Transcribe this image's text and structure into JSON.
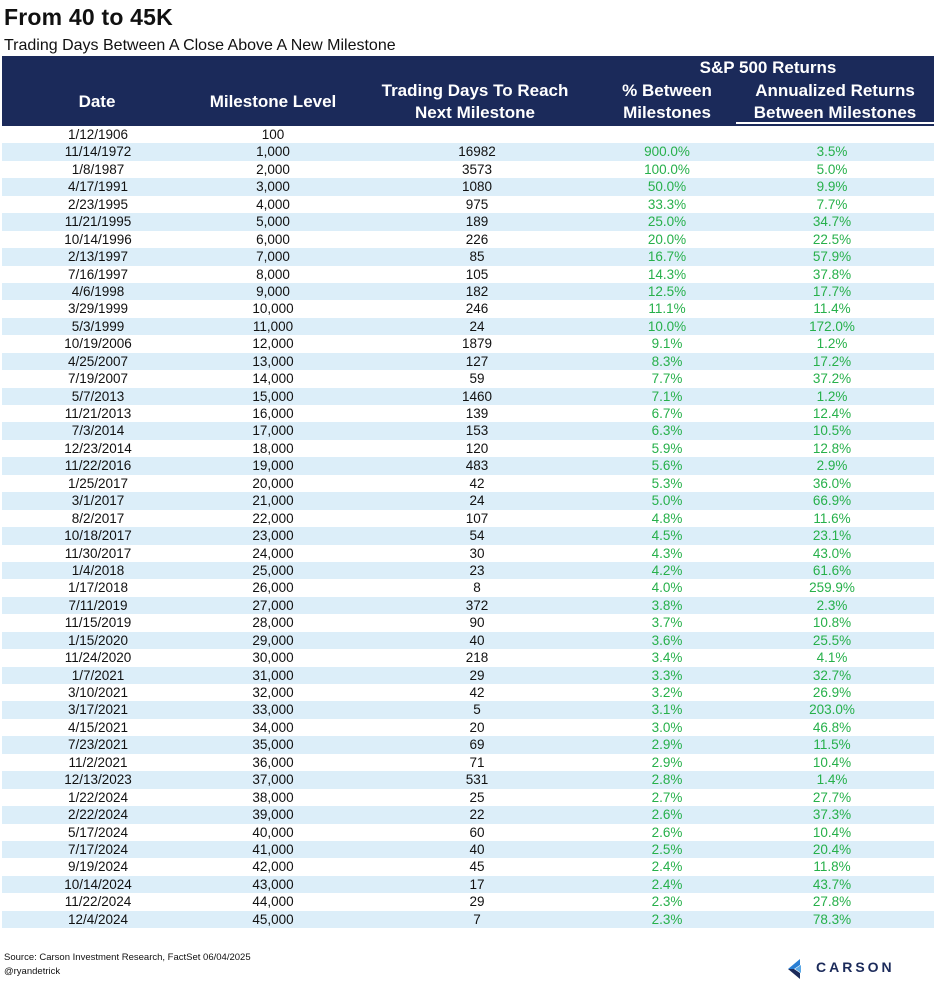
{
  "title": "From 40 to 45K",
  "subtitle": "Trading Days Between A Close Above A New Milestone",
  "header": {
    "date": "Date",
    "level": "Milestone Level",
    "days_line1": "Trading Days To Reach",
    "days_line2": "Next Milestone",
    "group": "S&P 500 Returns",
    "between_line1": "% Between",
    "between_line2": "Milestones",
    "annual_line1": "Annualized Returns",
    "annual_line2": "Between Milestones"
  },
  "rows": [
    {
      "date": "1/12/1906",
      "level": "100",
      "days": "",
      "between": "",
      "annual": ""
    },
    {
      "date": "11/14/1972",
      "level": "1,000",
      "days": "16982",
      "between": "900.0%",
      "annual": "3.5%"
    },
    {
      "date": "1/8/1987",
      "level": "2,000",
      "days": "3573",
      "between": "100.0%",
      "annual": "5.0%"
    },
    {
      "date": "4/17/1991",
      "level": "3,000",
      "days": "1080",
      "between": "50.0%",
      "annual": "9.9%"
    },
    {
      "date": "2/23/1995",
      "level": "4,000",
      "days": "975",
      "between": "33.3%",
      "annual": "7.7%"
    },
    {
      "date": "11/21/1995",
      "level": "5,000",
      "days": "189",
      "between": "25.0%",
      "annual": "34.7%"
    },
    {
      "date": "10/14/1996",
      "level": "6,000",
      "days": "226",
      "between": "20.0%",
      "annual": "22.5%"
    },
    {
      "date": "2/13/1997",
      "level": "7,000",
      "days": "85",
      "between": "16.7%",
      "annual": "57.9%"
    },
    {
      "date": "7/16/1997",
      "level": "8,000",
      "days": "105",
      "between": "14.3%",
      "annual": "37.8%"
    },
    {
      "date": "4/6/1998",
      "level": "9,000",
      "days": "182",
      "between": "12.5%",
      "annual": "17.7%"
    },
    {
      "date": "3/29/1999",
      "level": "10,000",
      "days": "246",
      "between": "11.1%",
      "annual": "11.4%"
    },
    {
      "date": "5/3/1999",
      "level": "11,000",
      "days": "24",
      "between": "10.0%",
      "annual": "172.0%"
    },
    {
      "date": "10/19/2006",
      "level": "12,000",
      "days": "1879",
      "between": "9.1%",
      "annual": "1.2%"
    },
    {
      "date": "4/25/2007",
      "level": "13,000",
      "days": "127",
      "between": "8.3%",
      "annual": "17.2%"
    },
    {
      "date": "7/19/2007",
      "level": "14,000",
      "days": "59",
      "between": "7.7%",
      "annual": "37.2%"
    },
    {
      "date": "5/7/2013",
      "level": "15,000",
      "days": "1460",
      "between": "7.1%",
      "annual": "1.2%"
    },
    {
      "date": "11/21/2013",
      "level": "16,000",
      "days": "139",
      "between": "6.7%",
      "annual": "12.4%"
    },
    {
      "date": "7/3/2014",
      "level": "17,000",
      "days": "153",
      "between": "6.3%",
      "annual": "10.5%"
    },
    {
      "date": "12/23/2014",
      "level": "18,000",
      "days": "120",
      "between": "5.9%",
      "annual": "12.8%"
    },
    {
      "date": "11/22/2016",
      "level": "19,000",
      "days": "483",
      "between": "5.6%",
      "annual": "2.9%"
    },
    {
      "date": "1/25/2017",
      "level": "20,000",
      "days": "42",
      "between": "5.3%",
      "annual": "36.0%"
    },
    {
      "date": "3/1/2017",
      "level": "21,000",
      "days": "24",
      "between": "5.0%",
      "annual": "66.9%"
    },
    {
      "date": "8/2/2017",
      "level": "22,000",
      "days": "107",
      "between": "4.8%",
      "annual": "11.6%"
    },
    {
      "date": "10/18/2017",
      "level": "23,000",
      "days": "54",
      "between": "4.5%",
      "annual": "23.1%"
    },
    {
      "date": "11/30/2017",
      "level": "24,000",
      "days": "30",
      "between": "4.3%",
      "annual": "43.0%"
    },
    {
      "date": "1/4/2018",
      "level": "25,000",
      "days": "23",
      "between": "4.2%",
      "annual": "61.6%"
    },
    {
      "date": "1/17/2018",
      "level": "26,000",
      "days": "8",
      "between": "4.0%",
      "annual": "259.9%"
    },
    {
      "date": "7/11/2019",
      "level": "27,000",
      "days": "372",
      "between": "3.8%",
      "annual": "2.3%"
    },
    {
      "date": "11/15/2019",
      "level": "28,000",
      "days": "90",
      "between": "3.7%",
      "annual": "10.8%"
    },
    {
      "date": "1/15/2020",
      "level": "29,000",
      "days": "40",
      "between": "3.6%",
      "annual": "25.5%"
    },
    {
      "date": "11/24/2020",
      "level": "30,000",
      "days": "218",
      "between": "3.4%",
      "annual": "4.1%"
    },
    {
      "date": "1/7/2021",
      "level": "31,000",
      "days": "29",
      "between": "3.3%",
      "annual": "32.7%"
    },
    {
      "date": "3/10/2021",
      "level": "32,000",
      "days": "42",
      "between": "3.2%",
      "annual": "26.9%"
    },
    {
      "date": "3/17/2021",
      "level": "33,000",
      "days": "5",
      "between": "3.1%",
      "annual": "203.0%"
    },
    {
      "date": "4/15/2021",
      "level": "34,000",
      "days": "20",
      "between": "3.0%",
      "annual": "46.8%"
    },
    {
      "date": "7/23/2021",
      "level": "35,000",
      "days": "69",
      "between": "2.9%",
      "annual": "11.5%"
    },
    {
      "date": "11/2/2021",
      "level": "36,000",
      "days": "71",
      "between": "2.9%",
      "annual": "10.4%"
    },
    {
      "date": "12/13/2023",
      "level": "37,000",
      "days": "531",
      "between": "2.8%",
      "annual": "1.4%"
    },
    {
      "date": "1/22/2024",
      "level": "38,000",
      "days": "25",
      "between": "2.7%",
      "annual": "27.7%"
    },
    {
      "date": "2/22/2024",
      "level": "39,000",
      "days": "22",
      "between": "2.6%",
      "annual": "37.3%"
    },
    {
      "date": "5/17/2024",
      "level": "40,000",
      "days": "60",
      "between": "2.6%",
      "annual": "10.4%"
    },
    {
      "date": "7/17/2024",
      "level": "41,000",
      "days": "40",
      "between": "2.5%",
      "annual": "20.4%"
    },
    {
      "date": "9/19/2024",
      "level": "42,000",
      "days": "45",
      "between": "2.4%",
      "annual": "11.8%"
    },
    {
      "date": "10/14/2024",
      "level": "43,000",
      "days": "17",
      "between": "2.4%",
      "annual": "43.7%"
    },
    {
      "date": "11/22/2024",
      "level": "44,000",
      "days": "29",
      "between": "2.3%",
      "annual": "27.8%"
    },
    {
      "date": "12/4/2024",
      "level": "45,000",
      "days": "7",
      "between": "2.3%",
      "annual": "78.3%"
    }
  ],
  "footer": {
    "source": "Source: Carson Investment Research, FactSet 06/04/2025",
    "handle": "@ryandetrick",
    "logo_text": "CARSON"
  },
  "colors": {
    "header_bg": "#1b2a5a",
    "alt_row": "#dceef9",
    "return_text": "#26b04a",
    "logo_blue": "#2a7fd4"
  },
  "icons": {
    "logo": "carson-logo-icon"
  }
}
